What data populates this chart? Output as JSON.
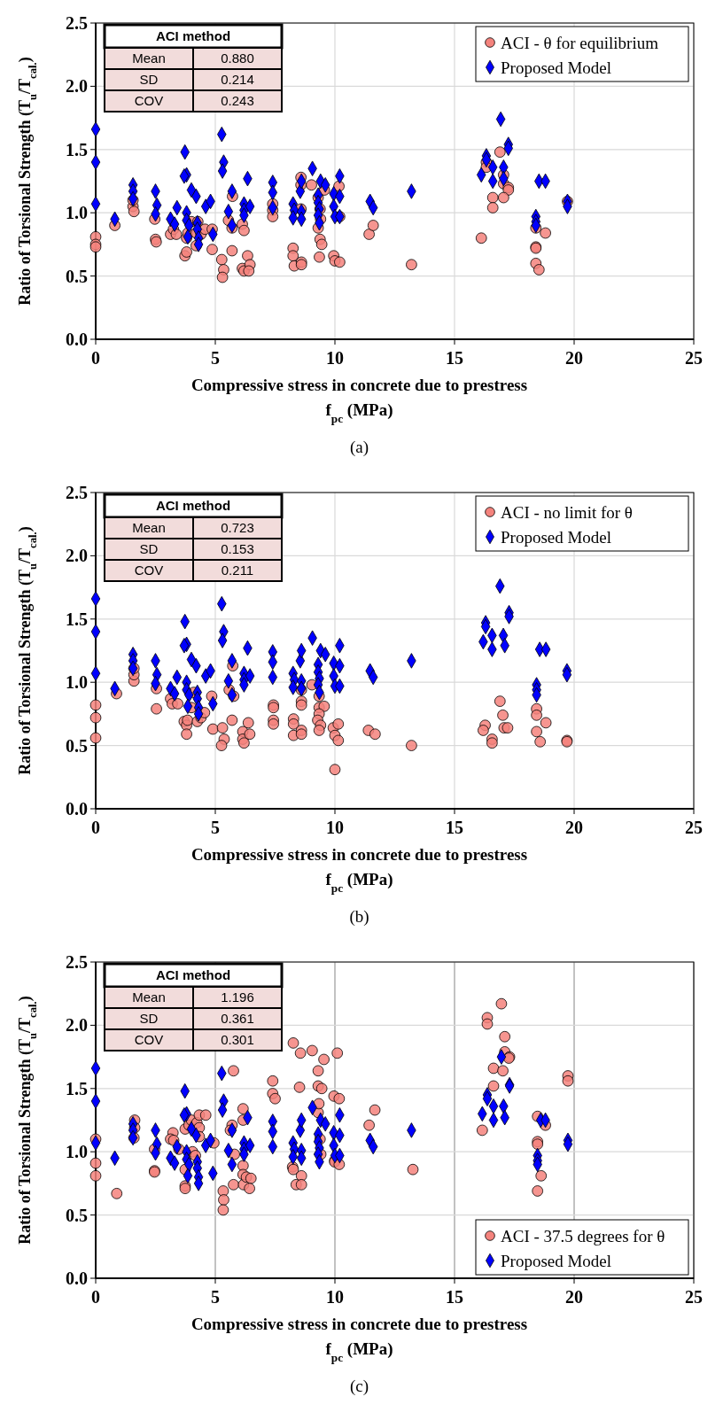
{
  "chart_data": [
    {
      "type": "scatter",
      "title": "(a)",
      "xlabel": "Compressive stress in concrete due to prestress\nf$_{pc}$ (MPa)",
      "ylabel": "Ratio of Torsional Strength (T$_{u}$/T$_{cal.}$)",
      "xlim": [
        0,
        25
      ],
      "xticks": [
        0,
        5,
        10,
        15,
        20,
        25
      ],
      "ylim": [
        0,
        2.5
      ],
      "yticks": [
        {
          "value": 0,
          "label": "0.0"
        },
        0.5,
        {
          "value": 1,
          "label": "1.0"
        },
        1.5,
        {
          "value": 2,
          "label": "2.0"
        },
        2.5
      ],
      "grid": true,
      "legend": "top right",
      "annotations": [
        "ACI method",
        "Mean",
        "0.880",
        "SD",
        "0.214",
        "COV",
        "0.243"
      ],
      "series": [
        {
          "name": "ACI - θ for equilibrium",
          "color": "#f4837d",
          "marker": "circle",
          "x": [
            0,
            0,
            0,
            0.8,
            1.56,
            1.6,
            1.56,
            2.47,
            2.5,
            2.53,
            3.13,
            3.25,
            3.37,
            3.73,
            3.8,
            3.8,
            3.85,
            4.0,
            4.2,
            4.2,
            4.27,
            4.4,
            4.57,
            4.87,
            4.87,
            5.27,
            5.35,
            5.3,
            5.55,
            5.7,
            5.7,
            5.72,
            6.13,
            6.2,
            6.35,
            6.13,
            6.2,
            6.45,
            6.4,
            7.4,
            7.4,
            7.4,
            8.25,
            8.25,
            8.3,
            8.6,
            8.6,
            8.58,
            8.58,
            8.58,
            9.02,
            9.3,
            9.3,
            9.4,
            9.38,
            9.45,
            9.35,
            9.56,
            9.38,
            9.95,
            10.0,
            10.2,
            10.17,
            10.2,
            11.43,
            11.6,
            13.2,
            16.9,
            16.33,
            16.33,
            17.05,
            17.05,
            17.25,
            17.25,
            16.6,
            16.6,
            17.05,
            16.12,
            18.4,
            18.8,
            18.4,
            18.4,
            18.4,
            18.53,
            19.72
          ],
          "values": [
            0.81,
            0.75,
            0.73,
            0.9,
            1.05,
            1.01,
            1.1,
            0.95,
            0.79,
            0.77,
            0.83,
            0.87,
            0.83,
            0.66,
            0.69,
            0.8,
            0.84,
            0.93,
            0.74,
            0.84,
            0.93,
            0.83,
            0.87,
            0.87,
            0.71,
            0.63,
            0.55,
            0.49,
            0.94,
            0.7,
            0.88,
            1.13,
            0.91,
            0.86,
            0.66,
            0.56,
            0.54,
            0.59,
            0.54,
            1.07,
            1.02,
            0.97,
            0.72,
            0.66,
            0.58,
            0.61,
            0.59,
            1.28,
            1.22,
            1.03,
            1.22,
            1.12,
            0.88,
            0.95,
            0.79,
            0.75,
            0.65,
            1.18,
            1.03,
            0.66,
            0.62,
            0.61,
            1.21,
            0.97,
            0.83,
            0.9,
            0.59,
            1.48,
            1.4,
            1.36,
            1.3,
            1.23,
            1.2,
            1.18,
            1.12,
            1.04,
            1.12,
            0.8,
            0.88,
            0.84,
            0.73,
            0.72,
            0.6,
            0.55,
            1.09
          ]
        },
        {
          "name": "Proposed Model",
          "color": "#0000ff",
          "marker": "diamond",
          "x": [
            0,
            0,
            0,
            0.8,
            1.56,
            1.56,
            1.56,
            2.5,
            2.56,
            2.5,
            3.13,
            3.3,
            3.4,
            3.73,
            3.8,
            3.7,
            4.0,
            4.2,
            3.8,
            3.8,
            3.9,
            3.85,
            4.25,
            4.25,
            4.3,
            4.3,
            4.6,
            4.8,
            4.9,
            5.27,
            5.35,
            5.3,
            5.55,
            5.7,
            5.7,
            6.2,
            6.2,
            6.2,
            6.45,
            6.35,
            7.4,
            7.4,
            7.4,
            8.25,
            8.3,
            8.25,
            8.55,
            8.6,
            8.6,
            8.6,
            9.06,
            9.3,
            9.4,
            9.6,
            9.3,
            9.35,
            9.3,
            9.35,
            9.95,
            9.95,
            10.0,
            10.2,
            10.2,
            10.2,
            11.47,
            11.6,
            13.2,
            16.93,
            17.25,
            17.25,
            16.33,
            16.33,
            16.6,
            17.05,
            16.12,
            17.05,
            16.6,
            18.53,
            18.8,
            18.4,
            18.4,
            18.4,
            19.72,
            19.72
          ],
          "values": [
            1.66,
            1.4,
            1.07,
            0.95,
            1.22,
            1.17,
            1.11,
            1.17,
            1.06,
            0.99,
            0.95,
            0.91,
            1.04,
            1.48,
            1.3,
            1.29,
            1.18,
            1.13,
            1.0,
            0.94,
            0.9,
            0.81,
            0.92,
            0.87,
            0.8,
            0.75,
            1.05,
            1.09,
            0.83,
            1.62,
            1.4,
            1.33,
            1.01,
            1.17,
            0.9,
            1.07,
            1.02,
            0.98,
            1.05,
            1.27,
            1.24,
            1.16,
            1.04,
            1.07,
            1.02,
            0.96,
            1.17,
            1.25,
            1.01,
            0.95,
            1.35,
            1.14,
            1.25,
            1.22,
            1.08,
            1.03,
            0.98,
            0.92,
            1.15,
            1.05,
            0.97,
            1.29,
            1.13,
            0.97,
            1.09,
            1.04,
            1.17,
            1.74,
            1.54,
            1.51,
            1.45,
            1.42,
            1.36,
            1.36,
            1.3,
            1.27,
            1.25,
            1.25,
            1.25,
            0.97,
            0.93,
            0.9,
            1.09,
            1.05
          ]
        }
      ]
    },
    {
      "type": "scatter",
      "title": "(b)",
      "xlabel": "Compressive stress in concrete due to prestress\nf$_{pc}$ (MPa)",
      "ylabel": "Ratio of Torsional Strength (T$_{u}$/T$_{cal.}$)",
      "xlim": [
        0,
        25
      ],
      "xticks": [
        0,
        5,
        10,
        15,
        20,
        25
      ],
      "ylim": [
        0,
        2.5
      ],
      "yticks": [
        {
          "value": 0,
          "label": "0.0"
        },
        0.5,
        {
          "value": 1,
          "label": "1.0"
        },
        1.5,
        {
          "value": 2,
          "label": "2.0"
        },
        2.5
      ],
      "grid": true,
      "legend": "top right",
      "annotations": [
        "ACI method",
        "Mean",
        "0.723",
        "SD",
        "0.153",
        "COV",
        "0.211"
      ],
      "series": [
        {
          "name": "ACI - no limit for θ",
          "color": "#f4837d",
          "marker": "circle",
          "x": [
            0,
            0,
            0,
            0.87,
            1.6,
            1.6,
            1.6,
            2.54,
            2.54,
            3.13,
            3.2,
            3.43,
            3.7,
            3.8,
            3.8,
            3.84,
            4.0,
            4.1,
            4.25,
            4.4,
            4.55,
            4.85,
            4.9,
            5.3,
            5.37,
            5.26,
            5.58,
            5.77,
            5.7,
            5.73,
            6.15,
            6.15,
            6.2,
            6.38,
            6.44,
            7.43,
            7.43,
            7.43,
            7.43,
            8.27,
            8.27,
            8.27,
            8.6,
            8.6,
            8.6,
            8.6,
            8.6,
            9.04,
            9.34,
            9.34,
            9.55,
            9.34,
            9.28,
            9.4,
            9.34,
            9.93,
            10.0,
            10.14,
            10.14,
            10.0,
            11.4,
            11.68,
            13.2,
            16.9,
            17.02,
            16.28,
            16.2,
            16.57,
            16.57,
            17.07,
            17.22,
            18.43,
            18.43,
            18.82,
            18.43,
            18.58,
            19.7,
            19.7
          ],
          "values": [
            0.82,
            0.72,
            0.56,
            0.91,
            1.01,
            1.06,
            1.11,
            0.95,
            0.79,
            0.87,
            0.83,
            0.83,
            0.69,
            0.66,
            0.59,
            0.7,
            0.8,
            0.92,
            0.69,
            0.72,
            0.76,
            0.89,
            0.63,
            0.64,
            0.55,
            0.5,
            0.94,
            0.89,
            0.7,
            1.13,
            0.61,
            0.55,
            0.52,
            0.68,
            0.59,
            0.82,
            0.8,
            0.7,
            0.67,
            0.71,
            0.67,
            0.58,
            0.62,
            0.59,
            0.94,
            0.85,
            0.82,
            0.98,
            0.89,
            0.8,
            0.81,
            0.75,
            0.7,
            0.66,
            0.62,
            0.64,
            0.58,
            0.67,
            0.54,
            0.31,
            0.62,
            0.59,
            0.5,
            0.85,
            0.74,
            0.66,
            0.62,
            0.55,
            0.52,
            0.64,
            0.64,
            0.79,
            0.74,
            0.68,
            0.61,
            0.53,
            0.54,
            0.53
          ]
        },
        {
          "name": "Proposed Model",
          "color": "#0000ff",
          "marker": "diamond",
          "x": [
            0,
            0,
            0,
            0.8,
            1.56,
            1.56,
            1.56,
            2.5,
            2.56,
            2.5,
            3.13,
            3.3,
            3.4,
            3.73,
            3.8,
            3.7,
            4.0,
            4.2,
            3.8,
            3.8,
            3.9,
            3.85,
            4.25,
            4.25,
            4.3,
            4.3,
            4.6,
            4.8,
            4.9,
            5.27,
            5.35,
            5.3,
            5.55,
            5.7,
            5.7,
            6.2,
            6.2,
            6.2,
            6.45,
            6.35,
            7.4,
            7.4,
            7.4,
            8.25,
            8.3,
            8.25,
            8.55,
            8.6,
            8.6,
            8.6,
            9.06,
            9.3,
            9.4,
            9.6,
            9.3,
            9.35,
            9.3,
            9.35,
            9.95,
            9.95,
            10.0,
            10.2,
            10.2,
            10.2,
            11.47,
            11.6,
            13.2,
            16.9,
            17.28,
            17.28,
            16.3,
            16.3,
            16.57,
            17.04,
            16.2,
            17.1,
            16.57,
            18.56,
            18.82,
            18.43,
            18.43,
            18.43,
            19.7,
            19.7
          ],
          "values": [
            1.66,
            1.4,
            1.07,
            0.95,
            1.22,
            1.17,
            1.11,
            1.17,
            1.06,
            0.99,
            0.95,
            0.91,
            1.04,
            1.48,
            1.3,
            1.29,
            1.18,
            1.13,
            1.0,
            0.94,
            0.9,
            0.81,
            0.92,
            0.87,
            0.8,
            0.75,
            1.05,
            1.09,
            0.83,
            1.62,
            1.4,
            1.33,
            1.01,
            1.17,
            0.9,
            1.07,
            1.02,
            0.98,
            1.05,
            1.27,
            1.24,
            1.16,
            1.04,
            1.07,
            1.02,
            0.96,
            1.17,
            1.25,
            1.01,
            0.95,
            1.35,
            1.14,
            1.25,
            1.22,
            1.08,
            1.03,
            0.98,
            0.92,
            1.15,
            1.05,
            0.97,
            1.29,
            1.13,
            0.97,
            1.09,
            1.04,
            1.17,
            1.76,
            1.55,
            1.52,
            1.47,
            1.44,
            1.37,
            1.37,
            1.32,
            1.29,
            1.26,
            1.26,
            1.26,
            0.98,
            0.94,
            0.9,
            1.09,
            1.06
          ]
        }
      ]
    },
    {
      "type": "scatter",
      "title": "(c)",
      "xlabel": "Compressive stress in concrete due to prestress\nf$_{pc}$ (MPa)",
      "ylabel": "Ratio of Torsional Strength (T$_{u}$/T$_{cal.}$)",
      "xlim": [
        0,
        25
      ],
      "xticks": [
        0,
        5,
        10,
        15,
        20,
        25
      ],
      "ylim": [
        0,
        2.5
      ],
      "yticks": [
        {
          "value": 0,
          "label": "0.0"
        },
        0.5,
        {
          "value": 1,
          "label": "1.0"
        },
        1.5,
        {
          "value": 2,
          "label": "2.0"
        },
        2.5
      ],
      "grid": true,
      "legend": "bottom right",
      "annotations": [
        "ACI method",
        "Mean",
        "1.196",
        "SD",
        "0.361",
        "COV",
        "0.301"
      ],
      "series": [
        {
          "name": "ACI - 37.5 degrees for θ",
          "color": "#f4837d",
          "marker": "circle",
          "x": [
            0,
            0,
            0,
            0.88,
            1.63,
            1.63,
            1.6,
            2.46,
            2.46,
            2.46,
            3.23,
            3.13,
            3.26,
            3.48,
            3.74,
            3.74,
            3.74,
            3.9,
            4.0,
            4.23,
            4.33,
            4.33,
            4.05,
            4.17,
            3.74,
            4.33,
            4.6,
            4.94,
            5.33,
            5.35,
            5.33,
            5.76,
            5.7,
            5.63,
            5.8,
            5.76,
            6.16,
            6.16,
            6.16,
            6.16,
            6.18,
            6.3,
            6.49,
            6.43,
            7.4,
            7.4,
            7.5,
            8.26,
            8.56,
            9.05,
            9.54,
            8.52,
            8.23,
            8.26,
            8.38,
            8.6,
            8.6,
            9.3,
            9.3,
            9.45,
            9.3,
            9.33,
            9.38,
            9.41,
            9.96,
            10.18,
            10.1,
            9.99,
            9.99,
            10.18,
            11.43,
            11.67,
            13.26,
            16.96,
            16.37,
            16.37,
            17.1,
            17.1,
            17.3,
            17.27,
            16.63,
            17.02,
            16.63,
            16.16,
            18.47,
            18.8,
            18.47,
            18.47,
            18.62,
            18.47,
            19.74,
            19.74
          ],
          "values": [
            1.1,
            0.91,
            0.81,
            0.67,
            1.25,
            1.19,
            1.11,
            1.02,
            0.85,
            0.84,
            1.15,
            1.1,
            1.09,
            1.02,
            0.73,
            0.71,
            1.18,
            1.21,
            1.25,
            1.23,
            1.19,
            1.12,
            1.0,
            0.97,
            0.86,
            1.29,
            1.29,
            1.07,
            0.69,
            0.62,
            0.54,
            1.64,
            1.21,
            1.17,
            0.98,
            0.74,
            1.34,
            1.25,
            0.89,
            0.82,
            0.74,
            0.8,
            0.79,
            0.71,
            1.56,
            1.46,
            1.42,
            1.86,
            1.78,
            1.8,
            1.73,
            1.51,
            0.88,
            0.86,
            0.74,
            0.81,
            0.74,
            1.64,
            1.52,
            1.5,
            1.31,
            1.38,
            1.1,
            0.98,
            1.44,
            1.42,
            1.78,
            0.93,
            0.92,
            0.9,
            1.21,
            1.33,
            0.86,
            2.17,
            2.06,
            2.01,
            1.91,
            1.79,
            1.75,
            1.74,
            1.66,
            1.64,
            1.52,
            1.17,
            1.28,
            1.21,
            1.08,
            1.06,
            0.81,
            0.69,
            1.6,
            1.56
          ]
        },
        {
          "name": "Proposed Model",
          "color": "#0000ff",
          "marker": "diamond",
          "x": [
            0,
            0,
            0,
            0.8,
            1.56,
            1.56,
            1.56,
            2.5,
            2.56,
            2.5,
            3.13,
            3.3,
            3.4,
            3.73,
            3.8,
            3.7,
            4.0,
            4.2,
            3.8,
            3.8,
            3.9,
            3.85,
            4.25,
            4.25,
            4.3,
            4.3,
            4.6,
            4.8,
            4.9,
            5.27,
            5.35,
            5.3,
            5.55,
            5.7,
            5.7,
            6.2,
            6.2,
            6.2,
            6.45,
            6.35,
            7.4,
            7.4,
            7.4,
            8.25,
            8.3,
            8.25,
            8.55,
            8.6,
            8.6,
            8.6,
            9.06,
            9.3,
            9.4,
            9.6,
            9.3,
            9.35,
            9.3,
            9.35,
            9.95,
            9.95,
            10.0,
            10.2,
            10.2,
            10.2,
            11.47,
            11.6,
            13.2,
            16.96,
            17.3,
            17.3,
            16.37,
            16.37,
            16.63,
            17.05,
            16.16,
            17.1,
            16.63,
            18.6,
            18.8,
            18.47,
            18.47,
            18.47,
            19.74,
            19.74
          ],
          "values": [
            1.66,
            1.4,
            1.07,
            0.95,
            1.22,
            1.17,
            1.11,
            1.17,
            1.06,
            0.99,
            0.95,
            0.91,
            1.04,
            1.48,
            1.3,
            1.29,
            1.18,
            1.13,
            1.0,
            0.94,
            0.9,
            0.81,
            0.92,
            0.87,
            0.8,
            0.75,
            1.05,
            1.09,
            0.83,
            1.62,
            1.4,
            1.33,
            1.01,
            1.17,
            0.9,
            1.07,
            1.02,
            0.98,
            1.05,
            1.27,
            1.24,
            1.16,
            1.04,
            1.07,
            1.02,
            0.96,
            1.17,
            1.25,
            1.01,
            0.95,
            1.35,
            1.14,
            1.25,
            1.22,
            1.08,
            1.03,
            0.98,
            0.92,
            1.15,
            1.05,
            0.97,
            1.29,
            1.13,
            0.97,
            1.09,
            1.04,
            1.17,
            1.75,
            1.53,
            1.52,
            1.45,
            1.42,
            1.36,
            1.36,
            1.3,
            1.27,
            1.25,
            1.25,
            1.25,
            0.97,
            0.93,
            0.9,
            1.09,
            1.06
          ]
        }
      ]
    }
  ]
}
